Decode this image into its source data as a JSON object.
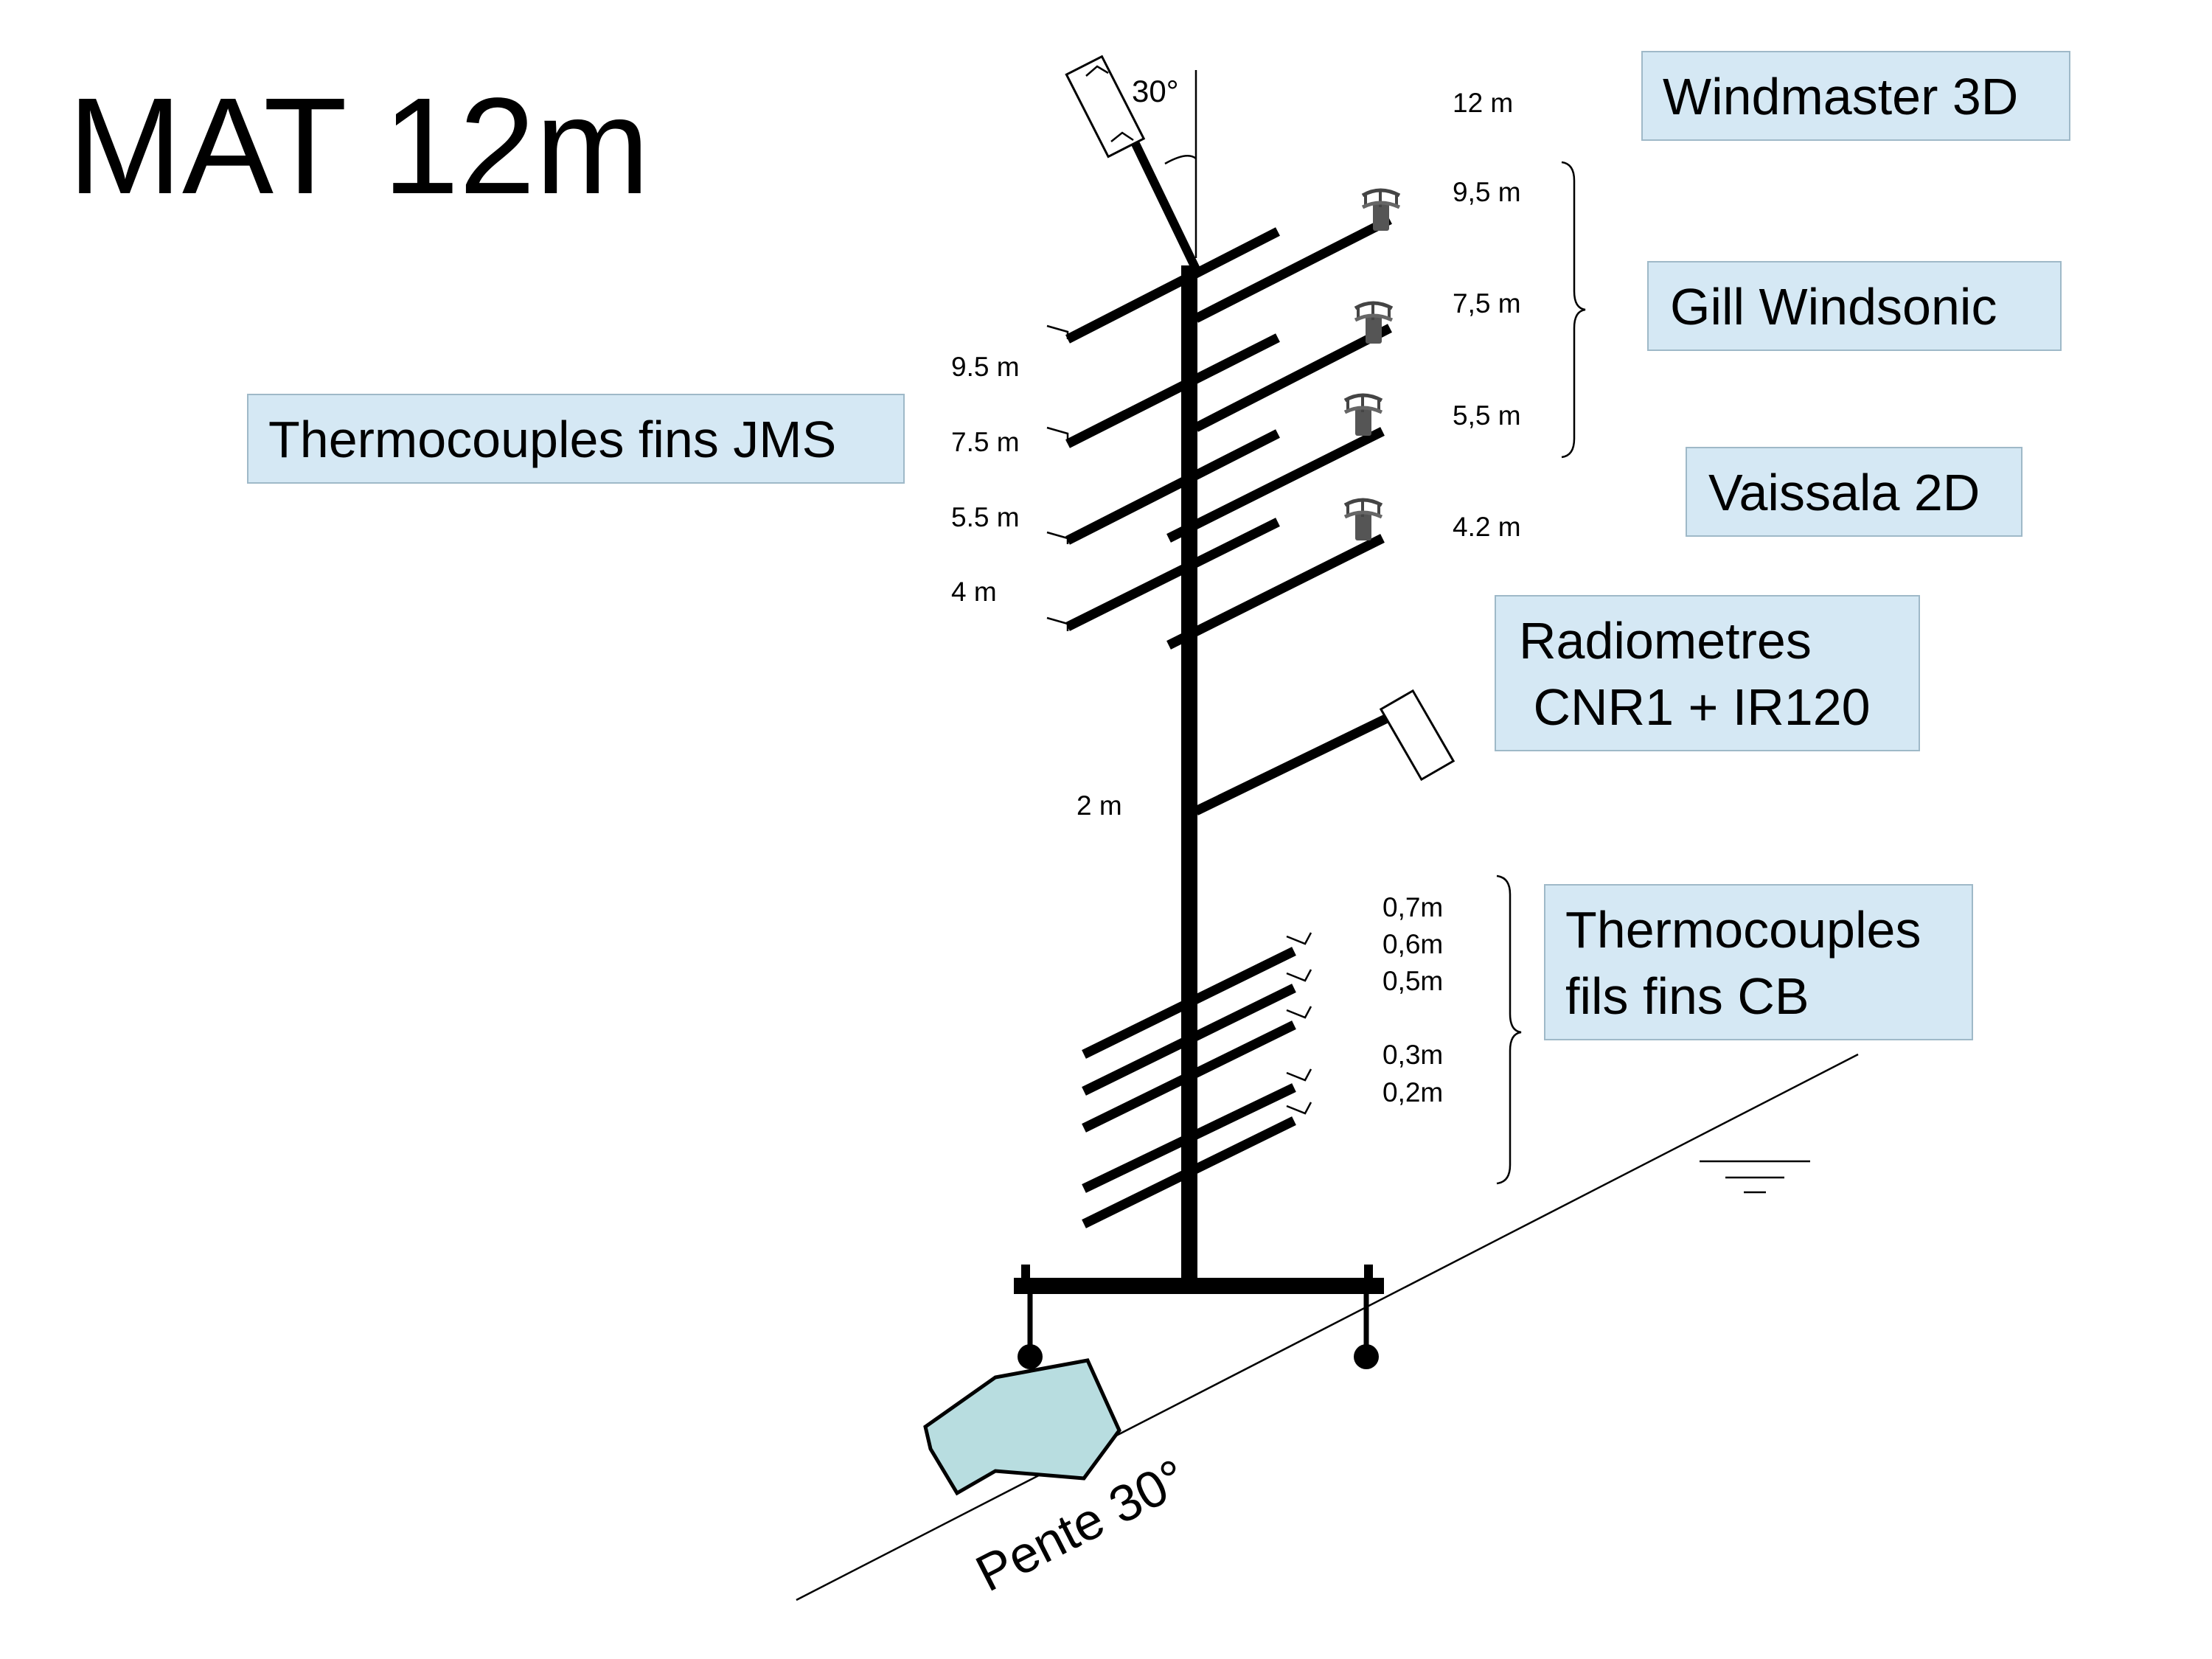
{
  "title": "MAT 12m",
  "mast_angle": "30°",
  "slope_label": "Pente 30°",
  "left_heights": [
    "9.5 m",
    "7.5 m",
    "5.5 m",
    "4 m"
  ],
  "right_heights": [
    "12 m",
    "9,5 m",
    "7,5 m",
    "5,5 m",
    "4.2 m"
  ],
  "radiometer_height": "2 m",
  "low_heights": [
    "0,7m",
    "0,6m",
    "0,5m",
    "0,3m",
    "0,2m"
  ],
  "boxes": {
    "windmaster": "Windmaster 3D",
    "gill": "Gill Windsonic",
    "vaissala": "Vaissala 2D",
    "radiometres_line1": "Radiometres",
    "radiometres_line2": " CNR1 + IR120",
    "thermo_jms": "Thermocouples fins JMS",
    "thermo_cb_line1": "Thermocouples",
    "thermo_cb_line2": "fils fins CB"
  },
  "colors": {
    "box_fill": "#d5e8f4",
    "box_border": "#9fb9c8",
    "rock_fill": "#b8dde0"
  }
}
